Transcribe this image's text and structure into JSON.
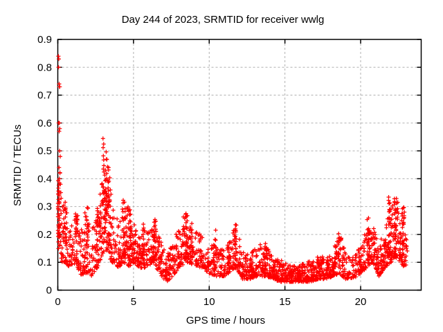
{
  "chart_data": {
    "type": "scatter",
    "title": "Day 244 of 2023, SRMTID for receiver wwlg",
    "xlabel": "GPS time / hours",
    "ylabel": "SRMTID / TECUs",
    "xlim": [
      0,
      24
    ],
    "ylim": [
      0,
      0.9
    ],
    "xticks": [
      0,
      5,
      10,
      15,
      20
    ],
    "yticks": [
      0,
      0.1,
      0.2,
      0.3,
      0.4,
      0.5,
      0.6,
      0.7,
      0.8,
      0.9
    ],
    "grid": {
      "show": true,
      "color": "#b0b0b0",
      "dash": "3,3"
    },
    "marker": {
      "shape": "plus",
      "color": "#ff0000",
      "size": 7
    },
    "frame_color": "#000000",
    "series_name": "SRMTID",
    "seed": 244,
    "points_per_hour": 95,
    "t_end": 23.1,
    "skew": 1.7,
    "envelope": [
      [
        0.0,
        0.16,
        0.4
      ],
      [
        0.25,
        0.1,
        0.3
      ],
      [
        0.5,
        0.1,
        0.32
      ],
      [
        0.8,
        0.08,
        0.25
      ],
      [
        1.2,
        0.1,
        0.28
      ],
      [
        1.5,
        0.05,
        0.22
      ],
      [
        1.9,
        0.06,
        0.3
      ],
      [
        2.2,
        0.05,
        0.22
      ],
      [
        2.6,
        0.08,
        0.3
      ],
      [
        2.9,
        0.12,
        0.4
      ],
      [
        3.1,
        0.15,
        0.55
      ],
      [
        3.35,
        0.12,
        0.45
      ],
      [
        3.6,
        0.1,
        0.3
      ],
      [
        4.0,
        0.08,
        0.28
      ],
      [
        4.3,
        0.1,
        0.33
      ],
      [
        4.7,
        0.08,
        0.3
      ],
      [
        5.0,
        0.1,
        0.24
      ],
      [
        5.4,
        0.08,
        0.2
      ],
      [
        5.8,
        0.08,
        0.24
      ],
      [
        6.3,
        0.1,
        0.26
      ],
      [
        6.8,
        0.05,
        0.18
      ],
      [
        7.2,
        0.03,
        0.13
      ],
      [
        7.6,
        0.05,
        0.18
      ],
      [
        8.0,
        0.08,
        0.24
      ],
      [
        8.5,
        0.1,
        0.28
      ],
      [
        9.0,
        0.09,
        0.24
      ],
      [
        9.5,
        0.08,
        0.2
      ],
      [
        10.0,
        0.06,
        0.17
      ],
      [
        10.5,
        0.05,
        0.16
      ],
      [
        11.0,
        0.05,
        0.14
      ],
      [
        11.5,
        0.07,
        0.2
      ],
      [
        11.8,
        0.08,
        0.24
      ],
      [
        12.2,
        0.04,
        0.14
      ],
      [
        12.7,
        0.04,
        0.13
      ],
      [
        13.2,
        0.05,
        0.16
      ],
      [
        13.7,
        0.05,
        0.17
      ],
      [
        14.2,
        0.04,
        0.12
      ],
      [
        14.7,
        0.03,
        0.11
      ],
      [
        15.2,
        0.03,
        0.09
      ],
      [
        15.7,
        0.03,
        0.09
      ],
      [
        16.2,
        0.03,
        0.1
      ],
      [
        16.7,
        0.03,
        0.11
      ],
      [
        17.2,
        0.04,
        0.12
      ],
      [
        17.7,
        0.04,
        0.12
      ],
      [
        18.2,
        0.05,
        0.14
      ],
      [
        18.6,
        0.06,
        0.22
      ],
      [
        19.0,
        0.04,
        0.13
      ],
      [
        19.5,
        0.04,
        0.12
      ],
      [
        20.0,
        0.06,
        0.16
      ],
      [
        20.4,
        0.08,
        0.22
      ],
      [
        20.8,
        0.1,
        0.24
      ],
      [
        21.2,
        0.05,
        0.16
      ],
      [
        21.6,
        0.08,
        0.22
      ],
      [
        22.0,
        0.1,
        0.3
      ],
      [
        22.3,
        0.12,
        0.34
      ],
      [
        22.6,
        0.1,
        0.3
      ],
      [
        22.9,
        0.08,
        0.28
      ],
      [
        23.1,
        0.1,
        0.25
      ]
    ],
    "spikes": [
      {
        "t": 0.08,
        "lo": 0.17,
        "hi": 0.45,
        "n": 25
      },
      {
        "t": 0.5,
        "lo": 0.15,
        "hi": 0.31,
        "n": 12
      },
      {
        "t": 1.25,
        "lo": 0.2,
        "hi": 0.28,
        "n": 14
      },
      {
        "t": 1.95,
        "lo": 0.1,
        "hi": 0.3,
        "n": 12
      },
      {
        "t": 2.6,
        "lo": 0.1,
        "hi": 0.28,
        "n": 10
      },
      {
        "t": 3.05,
        "lo": 0.2,
        "hi": 0.55,
        "n": 22
      },
      {
        "t": 3.2,
        "lo": 0.2,
        "hi": 0.5,
        "n": 18
      },
      {
        "t": 3.4,
        "lo": 0.15,
        "hi": 0.44,
        "n": 14
      },
      {
        "t": 4.35,
        "lo": 0.12,
        "hi": 0.33,
        "n": 12
      },
      {
        "t": 4.75,
        "lo": 0.1,
        "hi": 0.3,
        "n": 12
      },
      {
        "t": 5.65,
        "lo": 0.1,
        "hi": 0.26,
        "n": 10
      },
      {
        "t": 6.4,
        "lo": 0.1,
        "hi": 0.26,
        "n": 12
      },
      {
        "t": 8.5,
        "lo": 0.1,
        "hi": 0.28,
        "n": 14
      },
      {
        "t": 8.8,
        "lo": 0.12,
        "hi": 0.26,
        "n": 10
      },
      {
        "t": 10.45,
        "lo": 0.08,
        "hi": 0.24,
        "n": 10
      },
      {
        "t": 11.7,
        "lo": 0.1,
        "hi": 0.245,
        "n": 14
      },
      {
        "t": 13.7,
        "lo": 0.06,
        "hi": 0.18,
        "n": 8
      },
      {
        "t": 18.6,
        "lo": 0.06,
        "hi": 0.22,
        "n": 10
      },
      {
        "t": 20.5,
        "lo": 0.1,
        "hi": 0.26,
        "n": 14
      },
      {
        "t": 21.9,
        "lo": 0.12,
        "hi": 0.34,
        "n": 16
      },
      {
        "t": 22.3,
        "lo": 0.12,
        "hi": 0.33,
        "n": 16
      },
      {
        "t": 22.8,
        "lo": 0.1,
        "hi": 0.3,
        "n": 18
      }
    ],
    "outliers": [
      [
        0.04,
        0.84
      ],
      [
        0.07,
        0.83
      ],
      [
        0.05,
        0.8
      ],
      [
        0.09,
        0.74
      ],
      [
        0.11,
        0.73
      ],
      [
        0.13,
        0.73
      ],
      [
        0.06,
        0.6
      ],
      [
        0.1,
        0.6
      ],
      [
        0.13,
        0.58
      ],
      [
        0.09,
        0.57
      ],
      [
        0.12,
        0.5
      ],
      [
        0.16,
        0.48
      ],
      [
        0.08,
        0.44
      ],
      [
        0.14,
        0.42
      ],
      [
        0.1,
        0.4
      ],
      [
        0.18,
        0.38
      ],
      [
        0.2,
        0.35
      ],
      [
        0.22,
        0.33
      ]
    ]
  }
}
